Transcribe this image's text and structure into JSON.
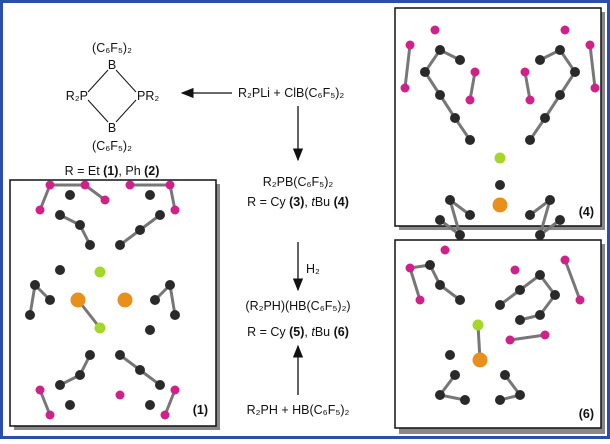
{
  "scheme": {
    "ring": {
      "top_substituent": "(C₆F₅)₂",
      "top_atom": "B",
      "left_group": "R₂P",
      "right_group": "PR₂",
      "bottom_atom": "B",
      "bottom_substituent": "(C₆F₅)₂"
    },
    "ring_caption": {
      "prefix": "R = Et ",
      "label_1": "(1)",
      "middle": ", Ph ",
      "label_2": "(2)"
    },
    "reagents_top": "R₂PLi + ClB(C₆F₅)₂",
    "intermediate": "R₂PB(C₆F₅)₂",
    "intermediate_caption": {
      "prefix": "R = Cy ",
      "label_3": "(3)",
      "middle": ", ",
      "italic": "t",
      "rest": "Bu ",
      "label_4": "(4)"
    },
    "arrow_reagent": "H₂",
    "product": "(R₂PH)(HB(C₆F₅)₂)",
    "product_caption": {
      "prefix": "R = Cy ",
      "label_5": "(5)",
      "middle": ", ",
      "italic": "t",
      "rest": "Bu ",
      "label_6": "(6)"
    },
    "reagents_bottom": "R₂PH + HB(C₆F₅)₂",
    "panels": {
      "panel_1": "(1)",
      "panel_4": "(4)",
      "panel_6": "(6)"
    }
  }
}
